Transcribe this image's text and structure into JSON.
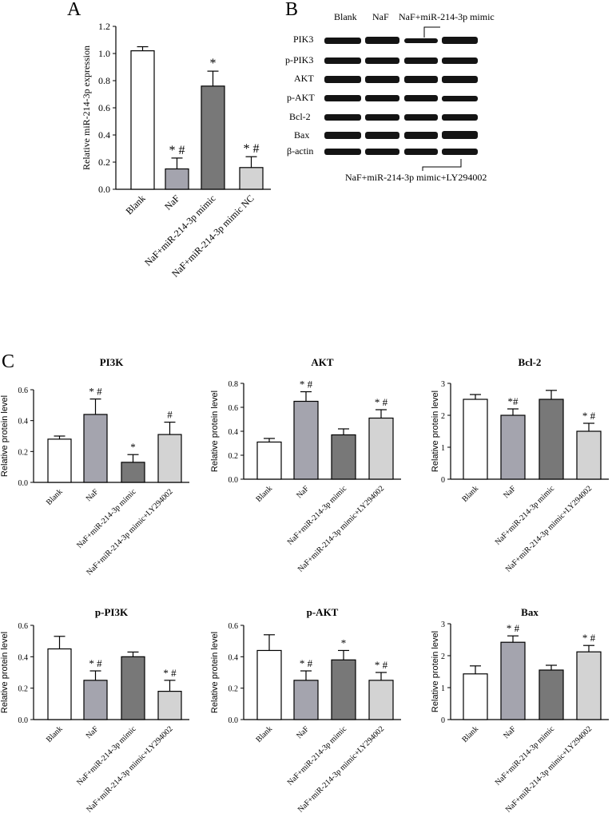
{
  "panels": {
    "a": "A",
    "b": "B",
    "c": "C"
  },
  "colors": {
    "blank": "#ffffff",
    "naf": "#a4a4ae",
    "mimic": "#787878",
    "fourth": "#d3d3d3",
    "band": "#141414"
  },
  "chart_data": [
    {
      "id": "mir",
      "type": "bar",
      "title": "",
      "ylabel": "Relative miR-214-3p expression",
      "categories": [
        "Blank",
        "NaF",
        "NaF+miR-214-3p mimic",
        "NaF+miR-214-3p mimic NC"
      ],
      "values": [
        1.02,
        0.15,
        0.76,
        0.16
      ],
      "errors": [
        0.03,
        0.08,
        0.11,
        0.08
      ],
      "significance": [
        "",
        "* #",
        "*",
        "* #"
      ],
      "ylim": [
        0,
        1.2
      ],
      "yticks": [
        "0.0",
        "0.2",
        "0.4",
        "0.6",
        "0.8",
        "1.0",
        "1.2"
      ],
      "grid": false
    },
    {
      "id": "pi3k",
      "type": "bar",
      "title": "PI3K",
      "ylabel": "Relative protein level",
      "categories": [
        "Blank",
        "NaF",
        "NaF+miR-214-3p mimic",
        "NaF+miR-214-3p mimic+LY294002"
      ],
      "values": [
        0.28,
        0.44,
        0.13,
        0.31
      ],
      "errors": [
        0.02,
        0.1,
        0.05,
        0.08
      ],
      "significance": [
        "",
        "* #",
        "*",
        "#"
      ],
      "ylim": [
        0,
        0.6
      ],
      "yticks": [
        "0.0",
        "0.2",
        "0.4",
        "0.6"
      ],
      "grid": false
    },
    {
      "id": "akt",
      "type": "bar",
      "title": "AKT",
      "ylabel": "Relative protein level",
      "categories": [
        "Blank",
        "NaF",
        "NaF+miR-214-3p mimic",
        "NaF+miR-214-3p mimic+LY294002"
      ],
      "values": [
        0.31,
        0.65,
        0.37,
        0.51
      ],
      "errors": [
        0.03,
        0.08,
        0.05,
        0.07
      ],
      "significance": [
        "",
        "* #",
        "",
        "* #"
      ],
      "ylim": [
        0,
        0.8
      ],
      "yticks": [
        "0.0",
        "0.2",
        "0.4",
        "0.6",
        "0.8"
      ],
      "grid": false
    },
    {
      "id": "bcl2",
      "type": "bar",
      "title": "Bcl-2",
      "ylabel": "Relative protein level",
      "categories": [
        "Blank",
        "NaF",
        "NaF+miR-214-3p mimic",
        "NaF+miR-214-3p mimic+LY294002"
      ],
      "values": [
        2.5,
        2.0,
        2.5,
        1.5
      ],
      "errors": [
        0.15,
        0.2,
        0.28,
        0.25
      ],
      "significance": [
        "",
        "*#",
        "",
        "* #"
      ],
      "ylim": [
        0,
        3
      ],
      "yticks": [
        "0",
        "1",
        "2",
        "3"
      ],
      "grid": false
    },
    {
      "id": "ppi3k",
      "type": "bar",
      "title": "p-PI3K",
      "ylabel": "Relative protein level",
      "categories": [
        "Blank",
        "NaF",
        "NaF+miR-214-3p mimic",
        "NaF+miR-214-3p mimic+LY294002"
      ],
      "values": [
        0.45,
        0.25,
        0.4,
        0.18
      ],
      "errors": [
        0.08,
        0.06,
        0.03,
        0.07
      ],
      "significance": [
        "",
        "* #",
        "",
        "* #"
      ],
      "ylim": [
        0,
        0.6
      ],
      "yticks": [
        "0.0",
        "0.2",
        "0.4",
        "0.6"
      ],
      "grid": false
    },
    {
      "id": "pakt",
      "type": "bar",
      "title": "p-AKT",
      "ylabel": "Relative protein level",
      "categories": [
        "Blank",
        "NaF",
        "NaF+miR-214-3p mimic",
        "NaF+miR-214-3p mimic+LY294002"
      ],
      "values": [
        0.44,
        0.25,
        0.38,
        0.25
      ],
      "errors": [
        0.1,
        0.06,
        0.06,
        0.05
      ],
      "significance": [
        "",
        "* #",
        "*",
        "* #"
      ],
      "ylim": [
        0,
        0.6
      ],
      "yticks": [
        "0.0",
        "0.2",
        "0.4",
        "0.6"
      ],
      "grid": false
    },
    {
      "id": "bax",
      "type": "bar",
      "title": "Bax",
      "ylabel": "Relative protein level",
      "categories": [
        "Blank",
        "NaF",
        "NaF+miR-214-3p mimic",
        "NaF+miR-214-3p mimic+LY294002"
      ],
      "values": [
        1.43,
        2.42,
        1.55,
        2.12
      ],
      "errors": [
        0.25,
        0.2,
        0.15,
        0.2
      ],
      "significance": [
        "",
        "* #",
        "",
        "* #"
      ],
      "ylim": [
        0,
        3
      ],
      "yticks": [
        "0",
        "1",
        "2",
        "3"
      ],
      "grid": false
    }
  ],
  "western_blot": {
    "lanes": [
      "Blank",
      "NaF",
      "NaF+miR-214-3p mimic",
      "NaF+miR-214-3p mimic+LY294002"
    ],
    "proteins": [
      "PIK3",
      "p-PIK3",
      "AKT",
      "p-AKT",
      "Bcl-2",
      "Bax",
      "β-actin"
    ]
  }
}
